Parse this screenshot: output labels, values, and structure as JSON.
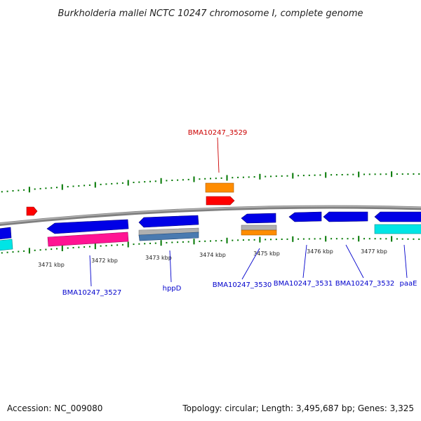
{
  "title": "Burkholderia mallei NCTC 10247 chromosome I, complete genome",
  "footer": {
    "accession": "Accession: NC_009080",
    "summary": "Topology: circular; Length: 3,495,687 bp; Genes: 3,325"
  },
  "ticks": [
    "3471 kbp",
    "3472 kbp",
    "3473 kbp",
    "3474 kbp",
    "3475 kbp",
    "3476 kbp",
    "3477 kbp"
  ],
  "gene_labels": [
    {
      "id": "BMA10247_3529",
      "color": "#cc0000"
    },
    {
      "id": "BMA10247_3527",
      "color": "#0000cc"
    },
    {
      "id": "hppD",
      "color": "#0000cc"
    },
    {
      "id": "BMA10247_3530",
      "color": "#0000cc"
    },
    {
      "id": "BMA10247_3531",
      "color": "#0000cc"
    },
    {
      "id": "BMA10247_3532",
      "color": "#0000cc"
    },
    {
      "id": "paaE",
      "color": "#0000cc"
    }
  ],
  "colors": {
    "backbone": "#808080",
    "forward_gene": "#0000e6",
    "reverse_gene": "#ff0000",
    "tick_mark": "#007700",
    "magenta_feature": "#ff1493",
    "cyan_feature": "#00e5e5",
    "orange_feature": "#ff8c00",
    "grey_feature": "#b0b0b0",
    "steel_feature": "#4a7ab0"
  }
}
